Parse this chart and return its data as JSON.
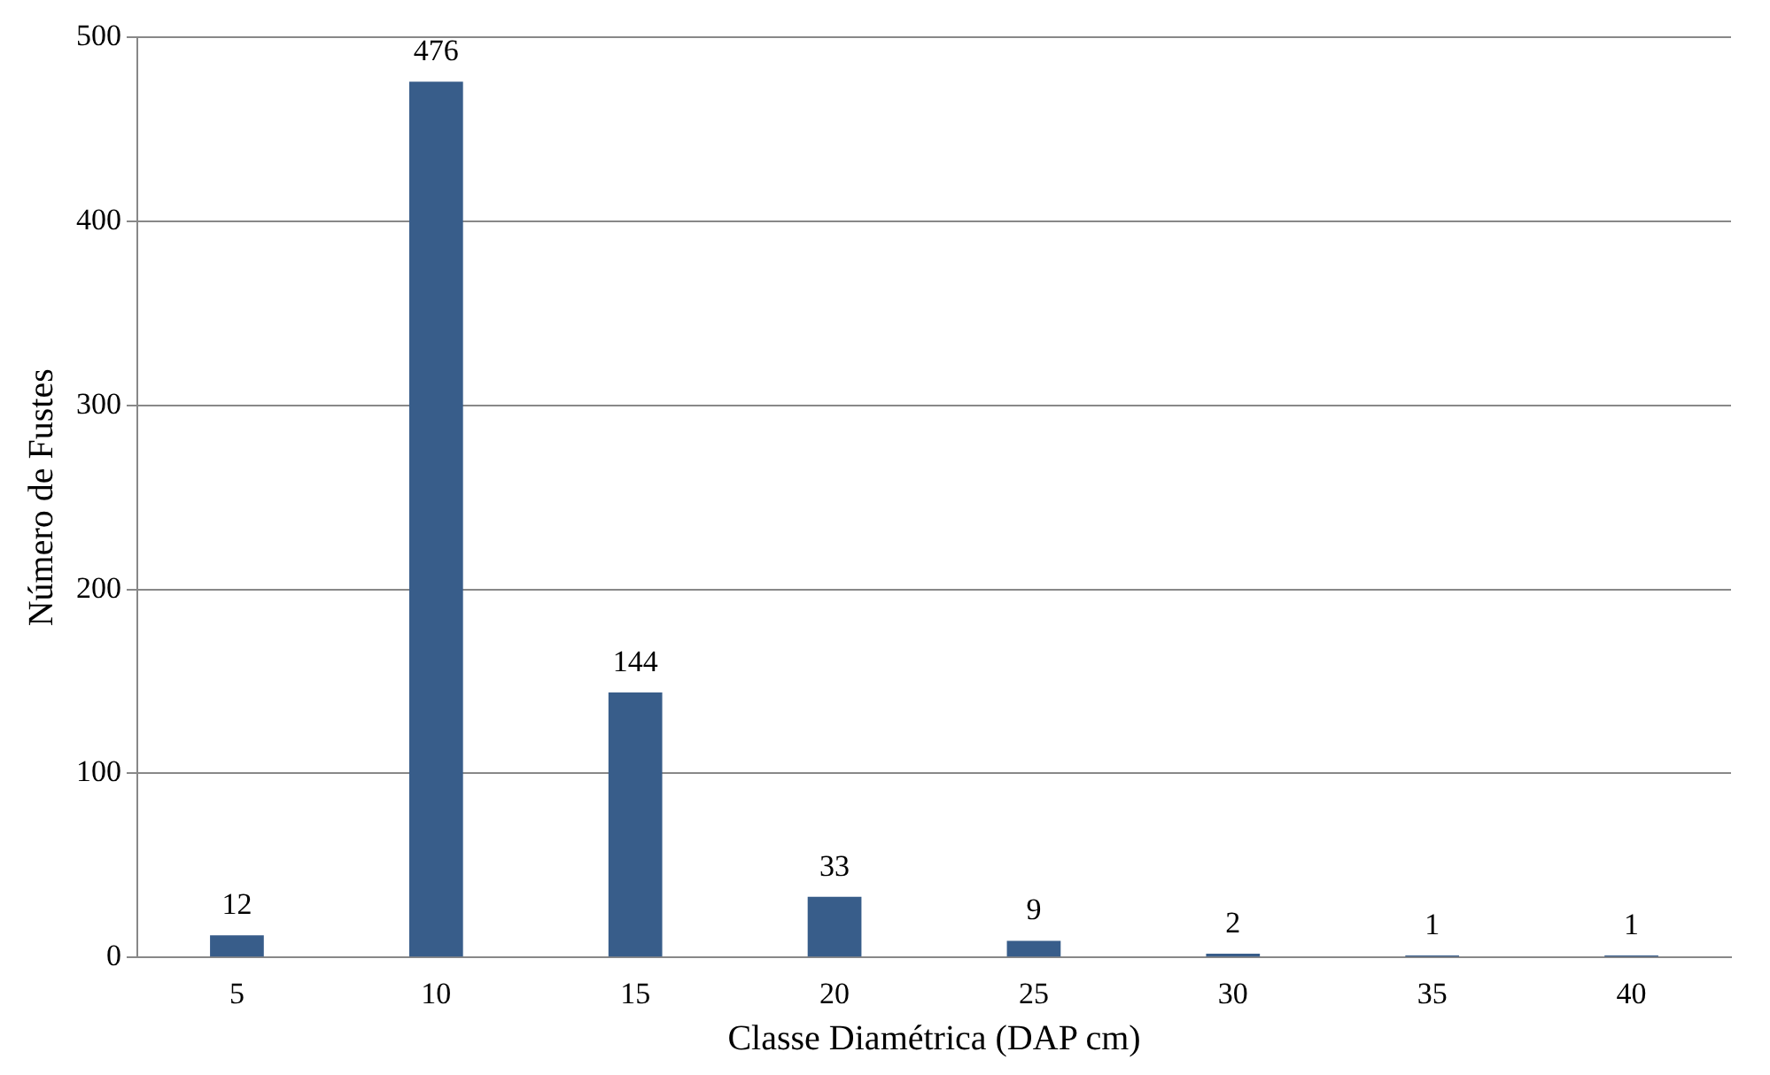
{
  "chart_data": {
    "type": "bar",
    "xlabel": "Classe Diamétrica (DAP cm)",
    "ylabel": "Número de Fustes",
    "categories": [
      "5",
      "10",
      "15",
      "20",
      "25",
      "30",
      "35",
      "40"
    ],
    "values": [
      12,
      476,
      144,
      33,
      9,
      2,
      1,
      1
    ],
    "color": "#385d8a",
    "ylim": [
      0,
      500
    ],
    "yticks": [
      0,
      100,
      200,
      300,
      400,
      500
    ],
    "grid": "y",
    "data_labels": true,
    "legend": false
  }
}
